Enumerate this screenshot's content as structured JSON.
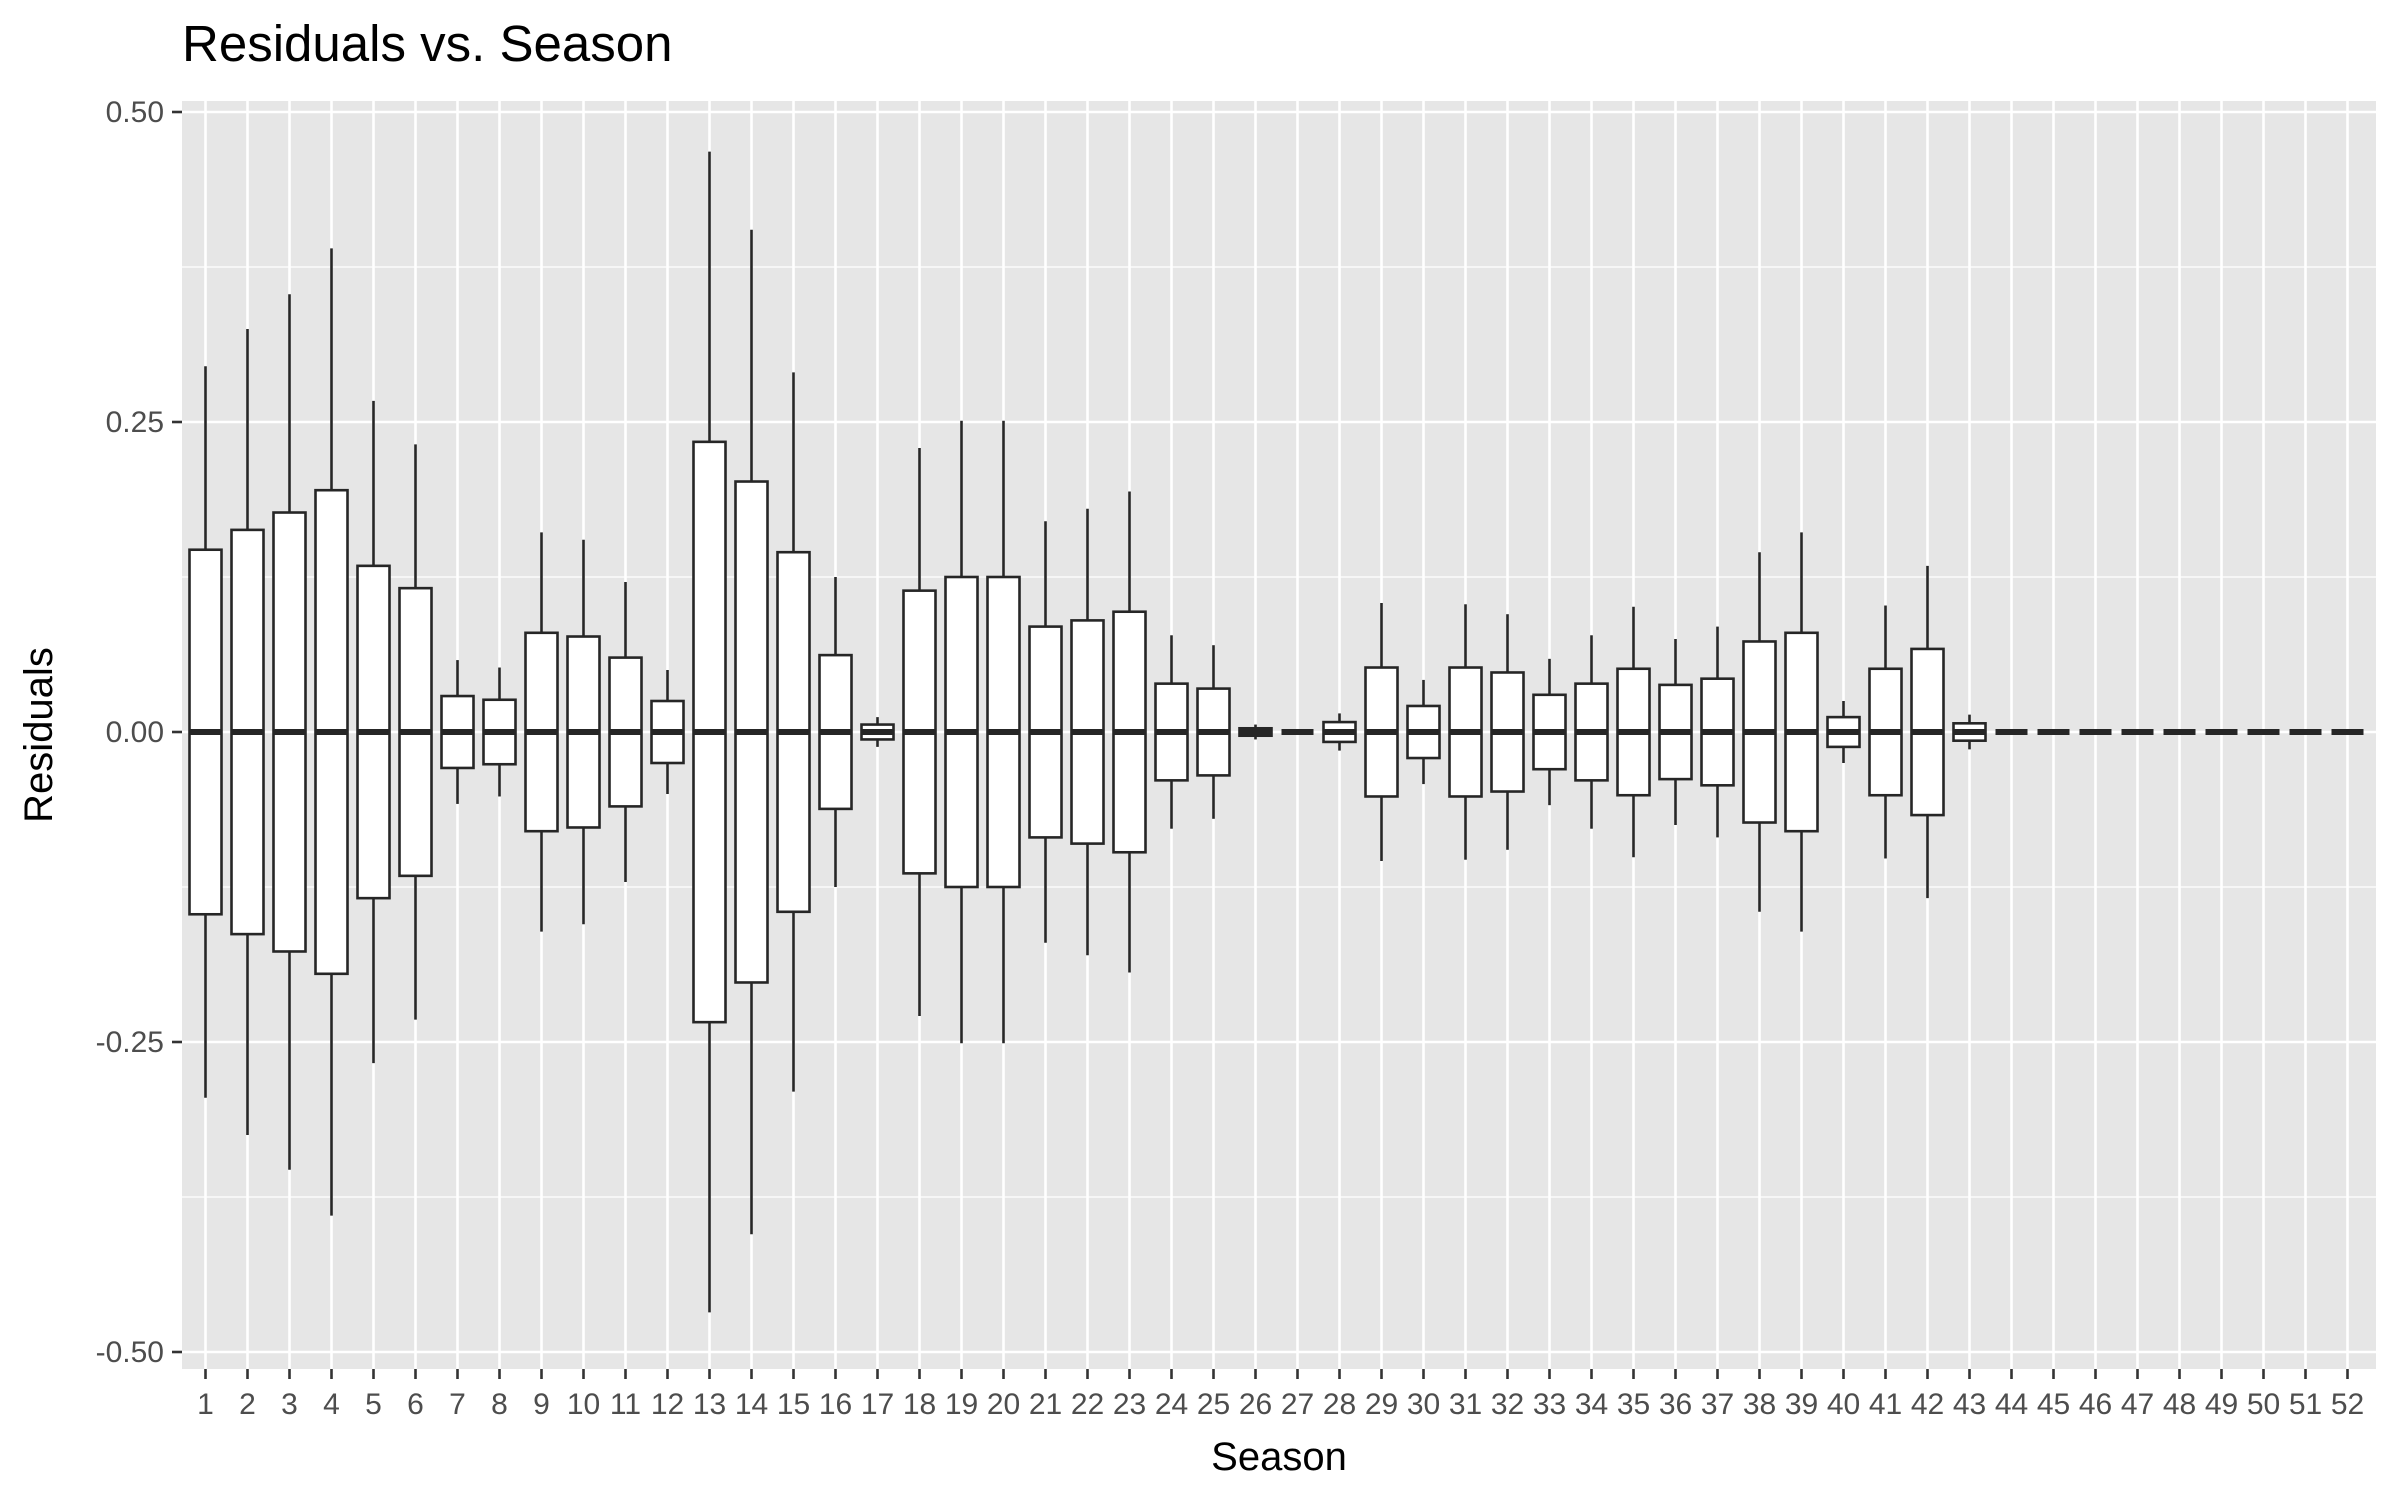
{
  "chart_data": {
    "type": "boxplot",
    "title": "Residuals vs. Season",
    "xlabel": "Season",
    "ylabel": "Residuals",
    "ylim": [
      -0.5,
      0.5
    ],
    "yticks": [
      -0.5,
      -0.25,
      0.0,
      0.25,
      0.5
    ],
    "ytick_labels": [
      "-0.50",
      "-0.25",
      "0.00",
      "0.25",
      "0.50"
    ],
    "categories": [
      "1",
      "2",
      "3",
      "4",
      "5",
      "6",
      "7",
      "8",
      "9",
      "10",
      "11",
      "12",
      "13",
      "14",
      "15",
      "16",
      "17",
      "18",
      "19",
      "20",
      "21",
      "22",
      "23",
      "24",
      "25",
      "26",
      "27",
      "28",
      "29",
      "30",
      "31",
      "32",
      "33",
      "34",
      "35",
      "36",
      "37",
      "38",
      "39",
      "40",
      "41",
      "42",
      "43",
      "44",
      "45",
      "46",
      "47",
      "48",
      "49",
      "50",
      "51",
      "52"
    ],
    "boxes": [
      {
        "season": "1",
        "lower": -0.295,
        "q1": -0.147,
        "median": 0,
        "q3": 0.147,
        "upper": 0.295
      },
      {
        "season": "2",
        "lower": -0.325,
        "q1": -0.163,
        "median": 0,
        "q3": 0.163,
        "upper": 0.325
      },
      {
        "season": "3",
        "lower": -0.353,
        "q1": -0.177,
        "median": 0,
        "q3": 0.177,
        "upper": 0.353
      },
      {
        "season": "4",
        "lower": -0.39,
        "q1": -0.195,
        "median": 0,
        "q3": 0.195,
        "upper": 0.39
      },
      {
        "season": "5",
        "lower": -0.267,
        "q1": -0.134,
        "median": 0,
        "q3": 0.134,
        "upper": 0.267
      },
      {
        "season": "6",
        "lower": -0.232,
        "q1": -0.116,
        "median": 0,
        "q3": 0.116,
        "upper": 0.232
      },
      {
        "season": "7",
        "lower": -0.058,
        "q1": -0.029,
        "median": 0,
        "q3": 0.029,
        "upper": 0.058
      },
      {
        "season": "8",
        "lower": -0.052,
        "q1": -0.026,
        "median": 0,
        "q3": 0.026,
        "upper": 0.052
      },
      {
        "season": "9",
        "lower": -0.161,
        "q1": -0.08,
        "median": 0,
        "q3": 0.08,
        "upper": 0.161
      },
      {
        "season": "10",
        "lower": -0.155,
        "q1": -0.077,
        "median": 0,
        "q3": 0.077,
        "upper": 0.155
      },
      {
        "season": "11",
        "lower": -0.121,
        "q1": -0.06,
        "median": 0,
        "q3": 0.06,
        "upper": 0.121
      },
      {
        "season": "12",
        "lower": -0.05,
        "q1": -0.025,
        "median": 0,
        "q3": 0.025,
        "upper": 0.05
      },
      {
        "season": "13",
        "lower": -0.468,
        "q1": -0.234,
        "median": 0,
        "q3": 0.234,
        "upper": 0.468
      },
      {
        "season": "14",
        "lower": -0.405,
        "q1": -0.202,
        "median": 0,
        "q3": 0.202,
        "upper": 0.405
      },
      {
        "season": "15",
        "lower": -0.29,
        "q1": -0.145,
        "median": 0,
        "q3": 0.145,
        "upper": 0.29
      },
      {
        "season": "16",
        "lower": -0.125,
        "q1": -0.062,
        "median": 0,
        "q3": 0.062,
        "upper": 0.125
      },
      {
        "season": "17",
        "lower": -0.012,
        "q1": -0.006,
        "median": 0,
        "q3": 0.006,
        "upper": 0.012
      },
      {
        "season": "18",
        "lower": -0.229,
        "q1": -0.114,
        "median": 0,
        "q3": 0.114,
        "upper": 0.229
      },
      {
        "season": "19",
        "lower": -0.251,
        "q1": -0.125,
        "median": 0,
        "q3": 0.125,
        "upper": 0.251
      },
      {
        "season": "20",
        "lower": -0.251,
        "q1": -0.125,
        "median": 0,
        "q3": 0.125,
        "upper": 0.251
      },
      {
        "season": "21",
        "lower": -0.17,
        "q1": -0.085,
        "median": 0,
        "q3": 0.085,
        "upper": 0.17
      },
      {
        "season": "22",
        "lower": -0.18,
        "q1": -0.09,
        "median": 0,
        "q3": 0.09,
        "upper": 0.18
      },
      {
        "season": "23",
        "lower": -0.194,
        "q1": -0.097,
        "median": 0,
        "q3": 0.097,
        "upper": 0.194
      },
      {
        "season": "24",
        "lower": -0.078,
        "q1": -0.039,
        "median": 0,
        "q3": 0.039,
        "upper": 0.078
      },
      {
        "season": "25",
        "lower": -0.07,
        "q1": -0.035,
        "median": 0,
        "q3": 0.035,
        "upper": 0.07
      },
      {
        "season": "26",
        "lower": -0.006,
        "q1": -0.003,
        "median": 0,
        "q3": 0.003,
        "upper": 0.006
      },
      {
        "season": "27",
        "lower": 0,
        "q1": 0,
        "median": 0,
        "q3": 0,
        "upper": 0
      },
      {
        "season": "28",
        "lower": -0.015,
        "q1": -0.008,
        "median": 0,
        "q3": 0.008,
        "upper": 0.015
      },
      {
        "season": "29",
        "lower": -0.104,
        "q1": -0.052,
        "median": 0,
        "q3": 0.052,
        "upper": 0.104
      },
      {
        "season": "30",
        "lower": -0.042,
        "q1": -0.021,
        "median": 0,
        "q3": 0.021,
        "upper": 0.042
      },
      {
        "season": "31",
        "lower": -0.103,
        "q1": -0.052,
        "median": 0,
        "q3": 0.052,
        "upper": 0.103
      },
      {
        "season": "32",
        "lower": -0.095,
        "q1": -0.048,
        "median": 0,
        "q3": 0.048,
        "upper": 0.095
      },
      {
        "season": "33",
        "lower": -0.059,
        "q1": -0.03,
        "median": 0,
        "q3": 0.03,
        "upper": 0.059
      },
      {
        "season": "34",
        "lower": -0.078,
        "q1": -0.039,
        "median": 0,
        "q3": 0.039,
        "upper": 0.078
      },
      {
        "season": "35",
        "lower": -0.101,
        "q1": -0.051,
        "median": 0,
        "q3": 0.051,
        "upper": 0.101
      },
      {
        "season": "36",
        "lower": -0.075,
        "q1": -0.038,
        "median": 0,
        "q3": 0.038,
        "upper": 0.075
      },
      {
        "season": "37",
        "lower": -0.085,
        "q1": -0.043,
        "median": 0,
        "q3": 0.043,
        "upper": 0.085
      },
      {
        "season": "38",
        "lower": -0.145,
        "q1": -0.073,
        "median": 0,
        "q3": 0.073,
        "upper": 0.145
      },
      {
        "season": "39",
        "lower": -0.161,
        "q1": -0.08,
        "median": 0,
        "q3": 0.08,
        "upper": 0.161
      },
      {
        "season": "40",
        "lower": -0.025,
        "q1": -0.012,
        "median": 0,
        "q3": 0.012,
        "upper": 0.025
      },
      {
        "season": "41",
        "lower": -0.102,
        "q1": -0.051,
        "median": 0,
        "q3": 0.051,
        "upper": 0.102
      },
      {
        "season": "42",
        "lower": -0.134,
        "q1": -0.067,
        "median": 0,
        "q3": 0.067,
        "upper": 0.134
      },
      {
        "season": "43",
        "lower": -0.014,
        "q1": -0.007,
        "median": 0,
        "q3": 0.007,
        "upper": 0.014
      },
      {
        "season": "44",
        "lower": 0,
        "q1": 0,
        "median": 0,
        "q3": 0,
        "upper": 0
      },
      {
        "season": "45",
        "lower": 0,
        "q1": 0,
        "median": 0,
        "q3": 0,
        "upper": 0
      },
      {
        "season": "46",
        "lower": 0,
        "q1": 0,
        "median": 0,
        "q3": 0,
        "upper": 0
      },
      {
        "season": "47",
        "lower": 0,
        "q1": 0,
        "median": 0,
        "q3": 0,
        "upper": 0
      },
      {
        "season": "48",
        "lower": 0,
        "q1": 0,
        "median": 0,
        "q3": 0,
        "upper": 0
      },
      {
        "season": "49",
        "lower": 0,
        "q1": 0,
        "median": 0,
        "q3": 0,
        "upper": 0
      },
      {
        "season": "50",
        "lower": 0,
        "q1": 0,
        "median": 0,
        "q3": 0,
        "upper": 0
      },
      {
        "season": "51",
        "lower": 0,
        "q1": 0,
        "median": 0,
        "q3": 0,
        "upper": 0
      },
      {
        "season": "52",
        "lower": 0,
        "q1": 0,
        "median": 0,
        "q3": 0,
        "upper": 0
      }
    ],
    "grid": true,
    "legend": "none",
    "colors": {
      "panel": "#e6e6e6",
      "grid": "#ffffff",
      "box_fill": "#ffffff",
      "box_stroke": "#262626",
      "tick_text": "#4d4d4d",
      "text": "#000000"
    }
  }
}
